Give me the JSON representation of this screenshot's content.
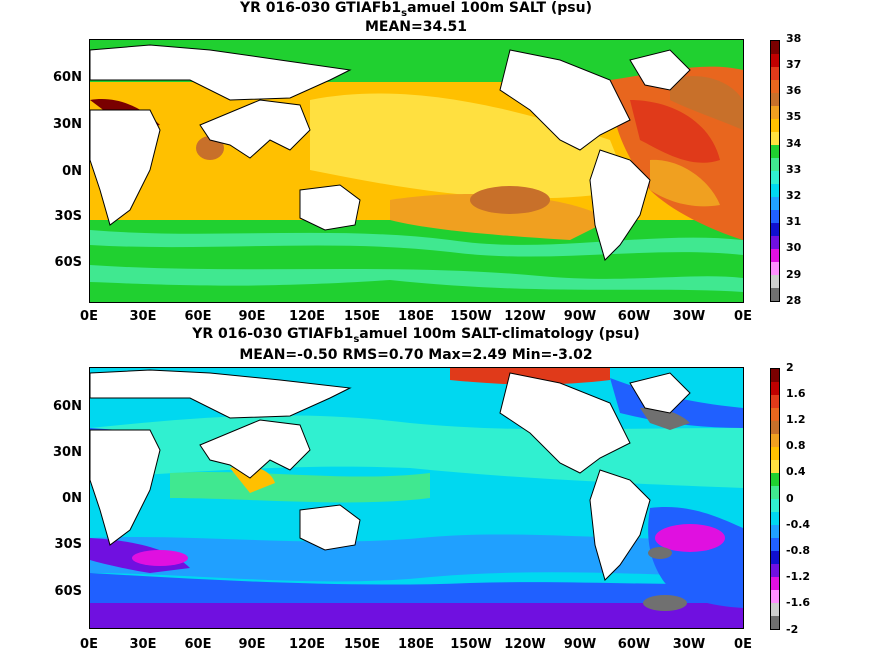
{
  "panel1": {
    "title": "YR 016-030 GTIAFb1",
    "title_sub": "s",
    "title_rest": "amuel 100m SALT (psu)",
    "subtitle": "MEAN=34.51",
    "colorbar": {
      "labels": [
        "38",
        "37",
        "36",
        "35",
        "34",
        "33",
        "32",
        "31",
        "30",
        "29",
        "28"
      ],
      "colors": [
        "#7a0000",
        "#c00000",
        "#e03a1a",
        "#e8661e",
        "#c8702a",
        "#f0a020",
        "#ffc000",
        "#ffe040",
        "#20d030",
        "#40e890",
        "#30f0d0",
        "#00d8f0",
        "#20a0ff",
        "#2060ff",
        "#1010d0",
        "#7010e0",
        "#e010e0",
        "#ff90ff",
        "#d0d0d0",
        "#707070"
      ]
    }
  },
  "panel2": {
    "title": "YR 016-030 GTIAFb1",
    "title_sub": "s",
    "title_rest": "amuel 100m SALT-climatology (psu)",
    "subtitle": "MEAN=-0.50   RMS=0.70   Max=2.49   Min=-3.02",
    "colorbar": {
      "labels": [
        "2",
        "1.6",
        "1.2",
        "0.8",
        "0.4",
        "0",
        "-0.4",
        "-0.8",
        "-1.2",
        "-1.6",
        "-2"
      ],
      "colors": [
        "#7a0000",
        "#c00000",
        "#e03a1a",
        "#e8661e",
        "#c8702a",
        "#f0a020",
        "#ffc000",
        "#ffe040",
        "#20d030",
        "#40e890",
        "#30f0d0",
        "#00d8f0",
        "#20a0ff",
        "#2060ff",
        "#1010d0",
        "#7010e0",
        "#e010e0",
        "#ff90ff",
        "#d0d0d0",
        "#707070"
      ]
    }
  },
  "axes": {
    "xlabels": [
      "0E",
      "30E",
      "60E",
      "90E",
      "120E",
      "150E",
      "180E",
      "150W",
      "120W",
      "90W",
      "60W",
      "30W",
      "0E"
    ],
    "ylabels": [
      "60N",
      "30N",
      "0N",
      "30S",
      "60S"
    ]
  }
}
